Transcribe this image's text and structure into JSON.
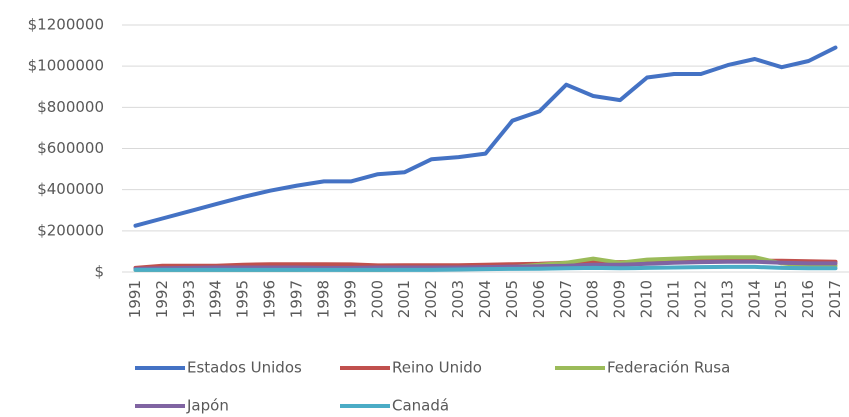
{
  "chart_data": {
    "type": "line",
    "categories": [
      "1991",
      "1992",
      "1993",
      "1994",
      "1995",
      "1996",
      "1997",
      "1998",
      "1999",
      "2000",
      "2001",
      "2002",
      "2003",
      "2004",
      "2005",
      "2006",
      "2007",
      "2008",
      "2009",
      "2010",
      "2011",
      "2012",
      "2013",
      "2014",
      "2015",
      "2016",
      "2017"
    ],
    "series": [
      {
        "name": "Estados Unidos",
        "color": "#4472c4",
        "values": [
          225000,
          260000,
          295000,
          330000,
          365000,
          395000,
          420000,
          440000,
          440000,
          475000,
          485000,
          548000,
          558000,
          575000,
          735000,
          780000,
          910000,
          855000,
          835000,
          945000,
          962000,
          962000,
          1005000,
          1035000,
          995000,
          1025000,
          1090000
        ]
      },
      {
        "name": "Reino Unido",
        "color": "#c0504d",
        "values": [
          20000,
          30000,
          30000,
          30000,
          35000,
          38000,
          38000,
          38000,
          37000,
          32000,
          33000,
          33000,
          33000,
          35000,
          38000,
          40000,
          45000,
          50000,
          48000,
          50000,
          52000,
          55000,
          55000,
          55000,
          55000,
          52000,
          50000
        ]
      },
      {
        "name": "Federación Rusa",
        "color": "#9bbb59",
        "values": [
          10000,
          10000,
          10000,
          10000,
          10000,
          10000,
          10000,
          12000,
          10000,
          10000,
          12000,
          14000,
          16000,
          20000,
          25000,
          35000,
          45000,
          65000,
          45000,
          60000,
          65000,
          70000,
          72000,
          72000,
          42000,
          30000,
          30000
        ]
      },
      {
        "name": "Japón",
        "color": "#8064a2",
        "values": [
          15000,
          18000,
          20000,
          22000,
          22000,
          22000,
          22000,
          20000,
          20000,
          22000,
          22000,
          22000,
          22000,
          24000,
          26000,
          28000,
          30000,
          35000,
          35000,
          40000,
          45000,
          48000,
          50000,
          50000,
          45000,
          42000,
          42000
        ]
      },
      {
        "name": "Canadá",
        "color": "#4bacc6",
        "values": [
          10000,
          10000,
          10000,
          10000,
          10000,
          10000,
          10000,
          10000,
          10000,
          10000,
          10000,
          10000,
          12000,
          14000,
          15000,
          16000,
          18000,
          20000,
          18000,
          20000,
          22000,
          24000,
          25000,
          25000,
          20000,
          18000,
          18000
        ]
      }
    ],
    "ylim": [
      0,
      1200000
    ],
    "yticks": [
      {
        "value": 0,
        "label": "$"
      },
      {
        "value": 200000,
        "label": "$200000"
      },
      {
        "value": 400000,
        "label": "$400000"
      },
      {
        "value": 600000,
        "label": "$600000"
      },
      {
        "value": 800000,
        "label": "$800000"
      },
      {
        "value": 1000000,
        "label": "$1000000"
      },
      {
        "value": 1200000,
        "label": "$1200000"
      }
    ],
    "grid": true,
    "legend": "bottom"
  }
}
